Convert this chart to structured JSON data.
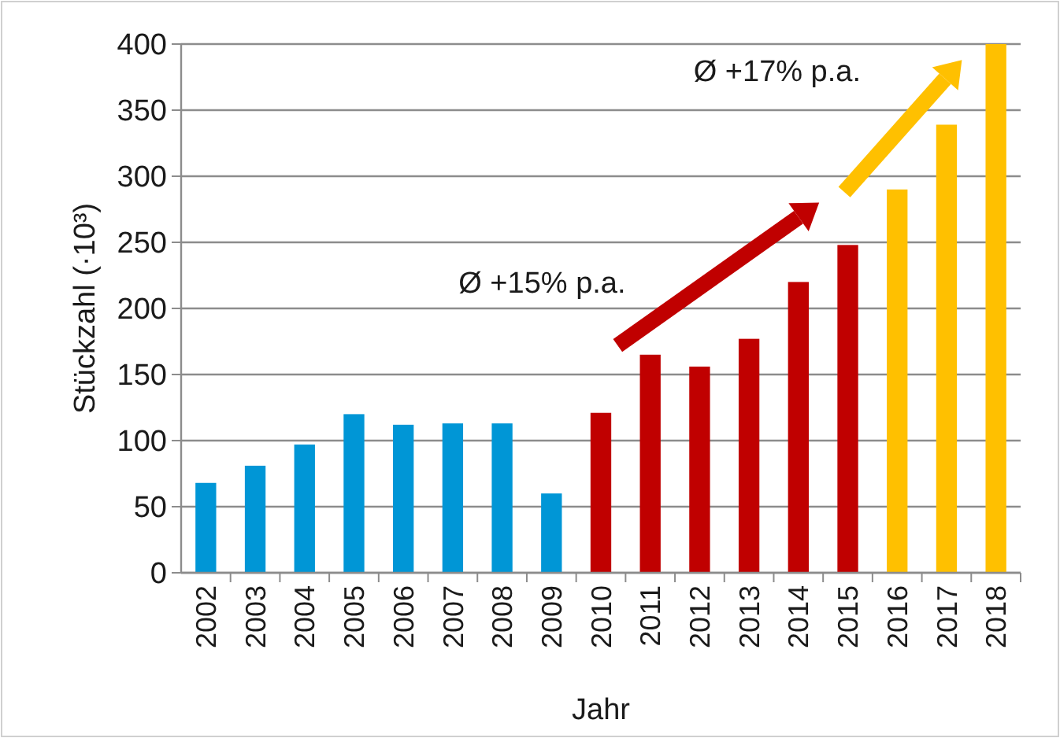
{
  "chart_data": {
    "type": "bar",
    "xlabel": "Jahr",
    "ylabel": "Stückzahl (·10³)",
    "categories": [
      "2002",
      "2003",
      "2004",
      "2005",
      "2006",
      "2007",
      "2008",
      "2009",
      "2010",
      "2011",
      "2012",
      "2013",
      "2014",
      "2015",
      "2016",
      "2017",
      "2018"
    ],
    "values": [
      68,
      81,
      97,
      120,
      112,
      113,
      113,
      60,
      121,
      165,
      156,
      177,
      220,
      248,
      290,
      339,
      400
    ],
    "colors": [
      "#0096d6",
      "#0096d6",
      "#0096d6",
      "#0096d6",
      "#0096d6",
      "#0096d6",
      "#0096d6",
      "#0096d6",
      "#c00000",
      "#c00000",
      "#c00000",
      "#c00000",
      "#c00000",
      "#c00000",
      "#ffc000",
      "#ffc000",
      "#ffc000"
    ],
    "ylim": [
      0,
      400
    ],
    "yticks": [
      0,
      50,
      100,
      150,
      200,
      250,
      300,
      350,
      400
    ],
    "grid": "y",
    "annotations": [
      "Ø +15% p.a.",
      "Ø +17% p.a."
    ]
  }
}
